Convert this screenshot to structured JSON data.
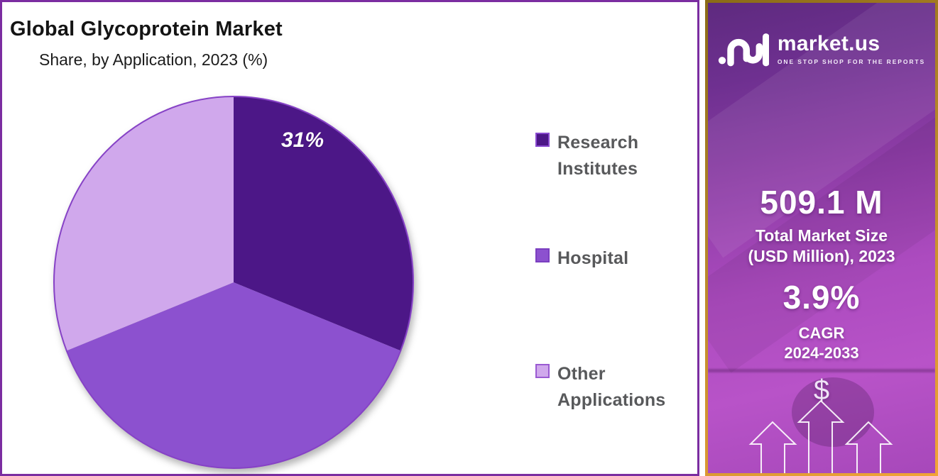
{
  "panel": {
    "title": "Global Glycoprotein Market",
    "subtitle": "Share, by Application, 2023 (%)"
  },
  "chart_data": {
    "type": "pie",
    "title": "Global Glycoprotein Market",
    "subtitle": "Share, by Application, 2023 (%)",
    "labels": [
      "Research Institutes",
      "Hospital",
      "Other Applications"
    ],
    "values": [
      31,
      38,
      31
    ],
    "unit": "%",
    "colors": [
      "#4c1787",
      "#8c51cf",
      "#d0a8ec"
    ],
    "swatch_borders": [
      "#8a4ad0",
      "#7b3fc0",
      "#9a5ad2"
    ],
    "data_labels": [
      "31%",
      "",
      ""
    ],
    "start_angle_deg": 0,
    "direction": "clockwise",
    "legend_position": "right",
    "outline_color": "#8642c6"
  },
  "sidebar": {
    "brand": "market.us",
    "tagline": "ONE STOP SHOP FOR THE REPORTS",
    "market_size_value": "509.1 M",
    "market_size_label_line1": "Total Market Size",
    "market_size_label_line2": "(USD Million), 2023",
    "cagr_value": "3.9%",
    "cagr_label_line1": "CAGR",
    "cagr_label_line2": "2024-2033",
    "dollar_symbol": "$"
  },
  "colors": {
    "panel_border": "#7b2da1",
    "sidebar_border_gold_dark": "#8a6b16",
    "sidebar_border_gold_light": "#f2a437",
    "sidebar_purple_top": "#5e2a7f",
    "sidebar_purple_bottom": "#a748ba",
    "legend_text": "#58595b",
    "title_text": "#141414"
  }
}
